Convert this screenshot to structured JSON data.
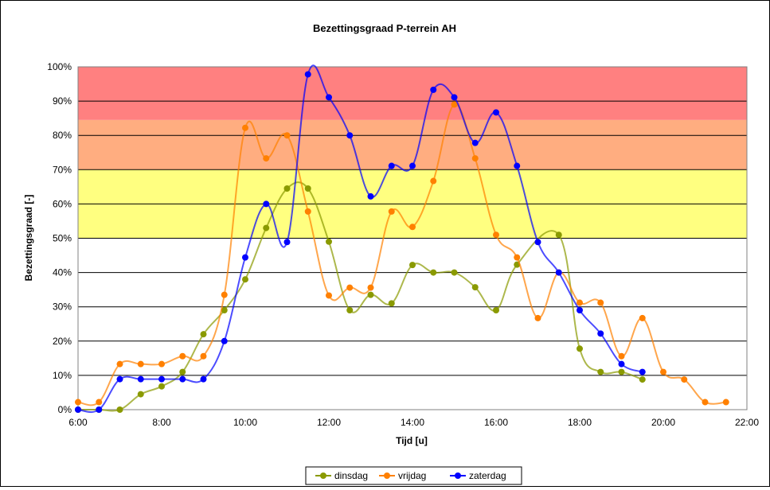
{
  "chart_data": {
    "type": "line",
    "title": "Bezettingsgraad P-terrein AH",
    "xlabel": "Tijd [u]",
    "ylabel": "Bezettingsgraad [-]",
    "xlim": [
      6,
      22
    ],
    "ylim": [
      0,
      100
    ],
    "x_ticks": [
      6,
      8,
      10,
      12,
      14,
      16,
      18,
      20,
      22
    ],
    "x_tick_labels": [
      "6:00",
      "8:00",
      "10:00",
      "12:00",
      "14:00",
      "16:00",
      "18:00",
      "20:00",
      "22:00"
    ],
    "y_ticks": [
      0,
      10,
      20,
      30,
      40,
      50,
      60,
      70,
      80,
      90,
      100
    ],
    "y_tick_labels": [
      "0%",
      "10%",
      "20%",
      "30%",
      "40%",
      "50%",
      "60%",
      "70%",
      "80%",
      "90%",
      "100%"
    ],
    "grid": true,
    "legend_position": "bottom",
    "bands": [
      {
        "from": 50,
        "to": 70,
        "color": "#ffff80"
      },
      {
        "from": 70,
        "to": 84.5,
        "color": "#ffad80"
      },
      {
        "from": 84.5,
        "to": 100,
        "color": "#ff8080"
      }
    ],
    "series": [
      {
        "name": "dinsdag",
        "color": "#8a9a00",
        "x": [
          6,
          6.5,
          7,
          7.5,
          8,
          8.5,
          9,
          9.5,
          10,
          10.5,
          11,
          11.5,
          12,
          12.5,
          13,
          13.5,
          14,
          14.5,
          15,
          15.5,
          16,
          16.5,
          17.5,
          18,
          18.5,
          19,
          19.5
        ],
        "y": [
          0,
          0,
          0,
          4.5,
          6.8,
          11,
          22,
          29,
          38,
          53,
          64.5,
          64.5,
          49,
          29,
          33.5,
          31,
          42.2,
          40,
          40,
          35.7,
          29,
          42.3,
          51,
          17.8,
          11,
          11,
          8.8
        ]
      },
      {
        "name": "vrijdag",
        "color": "#ff8000",
        "x": [
          6,
          6.5,
          7,
          7.5,
          8,
          8.5,
          9,
          9.5,
          10,
          10.5,
          11,
          11.5,
          12,
          12.5,
          13,
          13.5,
          14,
          14.5,
          15,
          15.5,
          16,
          16.5,
          17,
          17.5,
          18,
          18.5,
          19,
          19.5,
          20,
          20.5,
          21,
          21.5
        ],
        "y": [
          2.2,
          2.2,
          13.3,
          13.3,
          13.3,
          15.6,
          15.6,
          33.5,
          82.2,
          73.3,
          80,
          57.8,
          33.3,
          35.6,
          35.6,
          57.8,
          53.3,
          66.7,
          89,
          73.3,
          51,
          44.4,
          26.7,
          40,
          31.2,
          31.2,
          15.6,
          26.7,
          11,
          8.8,
          2.2,
          2.2
        ]
      },
      {
        "name": "zaterdag",
        "color": "#0000ff",
        "x": [
          6,
          6.5,
          7,
          7.5,
          8,
          8.5,
          9,
          9.5,
          10,
          10.5,
          11,
          11.5,
          12,
          12.5,
          13,
          13.5,
          14,
          14.5,
          15,
          15.5,
          16,
          16.5,
          17,
          17.5,
          18,
          18.5,
          19,
          19.5
        ],
        "y": [
          0,
          0,
          8.9,
          8.9,
          8.9,
          8.9,
          8.9,
          20,
          44.4,
          60,
          48.9,
          97.8,
          91.1,
          80,
          62.2,
          71.1,
          71.1,
          93.3,
          91.1,
          77.8,
          86.7,
          71.1,
          48.9,
          40,
          29,
          22.2,
          13.3,
          11
        ]
      }
    ]
  }
}
